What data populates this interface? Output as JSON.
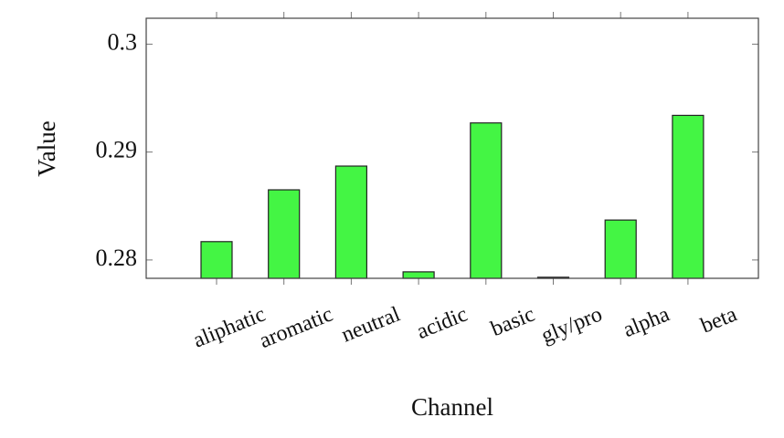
{
  "chart_data": {
    "type": "bar",
    "x_label": "Channel",
    "y_label": "Value",
    "categories": [
      "aliphatic",
      "aromatic",
      "neutral",
      "acidic",
      "basic",
      "gly/pro",
      "alpha",
      "beta"
    ],
    "values": [
      0.2817,
      0.2865,
      0.2887,
      0.2789,
      0.2927,
      0.2784,
      0.2837,
      0.2934
    ],
    "color": "#44f544",
    "ylim": [
      0.2783,
      0.3024
    ],
    "yticks": [
      0.28,
      0.29,
      0.3
    ],
    "grid": false
  }
}
